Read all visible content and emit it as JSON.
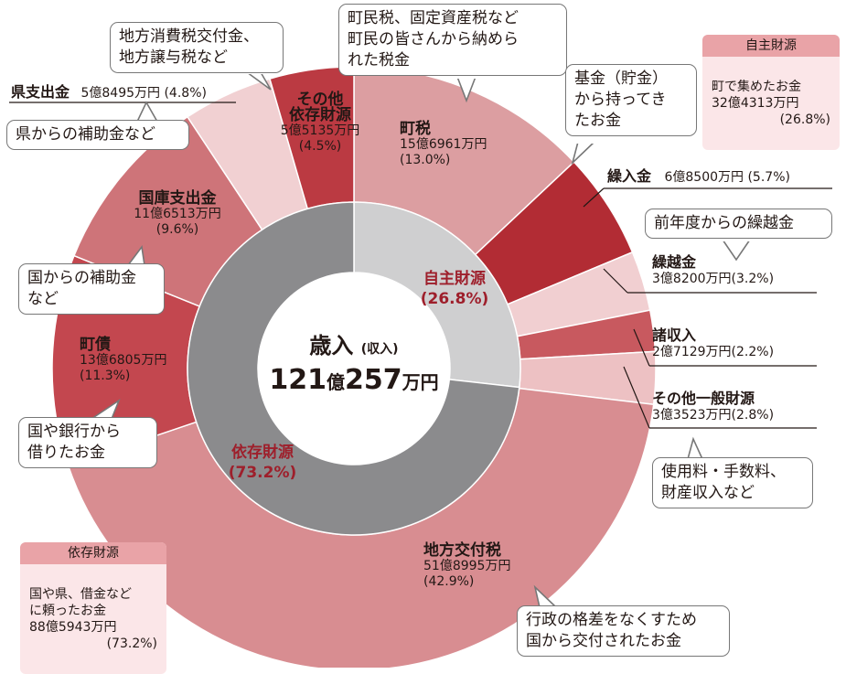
{
  "chart_data": {
    "type": "pie",
    "title": "歳入",
    "title_suffix": "(収入)",
    "total_amount": "121",
    "total_unit1": "億",
    "total_amount2": "257",
    "total_unit2": "万円",
    "inner_ring": [
      {
        "name": "自主財源",
        "pct_label": "(26.8%)",
        "value": 26.8,
        "color": "#cfcfd0"
      },
      {
        "name": "依存財源",
        "pct_label": "(73.2%)",
        "value": 73.2,
        "color": "#8b8b8d"
      }
    ],
    "outer_ring": [
      {
        "name": "町税",
        "amount": "15億6961万円",
        "pct": "(13.0%)",
        "value": 13.0,
        "color": "#dc9ea1",
        "group": "自主財源"
      },
      {
        "name": "繰入金",
        "amount": "6億8500万円",
        "pct": "(5.7%)",
        "value": 5.7,
        "color": "#b22c34",
        "group": "自主財源"
      },
      {
        "name": "繰越金",
        "amount": "3億8200万円",
        "pct": "(3.2%)",
        "value": 3.2,
        "color": "#f1cfd1",
        "group": "自主財源"
      },
      {
        "name": "諸収入",
        "amount": "2億7129万円",
        "pct": "(2.2%)",
        "value": 2.2,
        "color": "#c8595f",
        "group": "自主財源"
      },
      {
        "name": "その他一般財源",
        "amount": "3億3523万円",
        "pct": "(2.8%)",
        "value": 2.8,
        "color": "#edc1c3",
        "group": "自主財源"
      },
      {
        "name": "地方交付税",
        "amount": "51億8995万円",
        "pct": "(42.9%)",
        "value": 42.9,
        "color": "#d88d91",
        "group": "依存財源"
      },
      {
        "name": "町債",
        "amount": "13億6805万円",
        "pct": "(11.3%)",
        "value": 11.3,
        "color": "#c3474f",
        "group": "依存財源"
      },
      {
        "name": "国庫支出金",
        "amount": "11億6513万円",
        "pct": "(9.6%)",
        "value": 9.6,
        "color": "#ce7479",
        "group": "依存財源"
      },
      {
        "name": "県支出金",
        "amount": "5億8495万円",
        "pct": "(4.8%)",
        "value": 4.8,
        "color": "#f1d0d2",
        "group": "依存財源"
      },
      {
        "name": "その他依存財源",
        "name_line1": "その他",
        "name_line2": "依存財源",
        "amount": "5億5135万円",
        "pct": "(4.5%)",
        "value": 4.5,
        "color": "#bb3a42",
        "group": "依存財源"
      }
    ]
  },
  "notes": {
    "town_tax": "町民税、固定資産税など\n町民の皆さんから納めら\nれた税金",
    "fund": "基金（貯金）\nから持ってき\nたお金",
    "carryover": "前年度からの繰越金",
    "misc": "使用料・手数料、\n財産収入など",
    "grant_tax": "行政の格差をなくすため\n国から交付されたお金",
    "bonds": "国や銀行から\n借りたお金",
    "national": "国からの補助金\nなど",
    "prefectural": "県からの補助金など",
    "other_dependent": "地方消費税交付金、\n地方譲与税など"
  },
  "boxes": {
    "own": {
      "header": "自主財源",
      "body": "町で集めたお金\n32億4313万円",
      "pct": "(26.8%)"
    },
    "dependent": {
      "header": "依存財源",
      "body": "国や県、借金など\nに頼ったお金\n88億5943万円",
      "pct": "(73.2%)"
    }
  }
}
